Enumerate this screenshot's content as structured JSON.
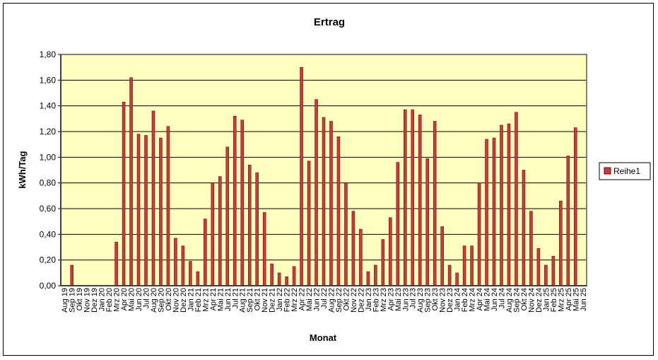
{
  "chart_data": {
    "type": "bar",
    "title": "Ertrag",
    "xlabel": "Monat",
    "ylabel": "kWh/Tag",
    "ylim": [
      0,
      1.8
    ],
    "ytick_step": 0.2,
    "ytick_labels": [
      "0,00",
      "0,20",
      "0,40",
      "0,60",
      "0,80",
      "1,00",
      "1,20",
      "1,40",
      "1,60",
      "1,80"
    ],
    "grid": true,
    "legend_position": "right",
    "colors": {
      "plot_background": "#ffffc0",
      "bar_fill": "#c04040",
      "bar_dark": "#800000",
      "grid": "#000000",
      "plot_border": "#808080"
    },
    "categories": [
      "Aug 19",
      "Sep 19",
      "Okt 19",
      "Nov 19",
      "Dez 19",
      "Jan 20",
      "Feb 20",
      "Mrz 20",
      "Apr 20",
      "Mai 20",
      "Jun 20",
      "Jul 20",
      "Aug 20",
      "Sep 20",
      "Okt 20",
      "Nov 20",
      "Dez 20",
      "Jan 21",
      "Feb 21",
      "Mrz 21",
      "Apr 21",
      "Mai 21",
      "Jun 21",
      "Jul 21",
      "Aug 21",
      "Sep 21",
      "Okt 21",
      "Nov 21",
      "Dez 21",
      "Jan 22",
      "Feb 22",
      "Mrz 22",
      "Apr 22",
      "Mai 22",
      "Jun 22",
      "Jul 22",
      "Aug 22",
      "Sep 22",
      "Okt 22",
      "Nov 22",
      "Dez 22",
      "Jan 23",
      "Feb 23",
      "Mrz 23",
      "Apr 23",
      "Mai 23",
      "Jun 23",
      "Jul 23",
      "Aug 23",
      "Sep 23",
      "Okt 23",
      "Nov 23",
      "Dez 23",
      "Jan 24",
      "Feb 24",
      "Mrz 24",
      "Apr 24",
      "Mai 24",
      "Jun 24",
      "Jul 24",
      "Aug 24",
      "Sep 24",
      "Okt 24",
      "Nov 24",
      "Dez 24",
      "Jan 25",
      "Feb 25",
      "Mrz 25",
      "Apr 25",
      "Mai 25",
      "Jun 25"
    ],
    "series": [
      {
        "name": "Reihe1",
        "values": [
          0,
          0.16,
          0,
          0,
          0,
          0,
          0,
          0.34,
          1.43,
          1.62,
          1.18,
          1.17,
          1.36,
          1.15,
          1.24,
          0.37,
          0.31,
          0.19,
          0.11,
          0.52,
          0.8,
          0.85,
          1.08,
          1.32,
          1.29,
          0.94,
          0.88,
          0.57,
          0.17,
          0.1,
          0.07,
          0.15,
          1.7,
          0.97,
          1.45,
          1.31,
          1.28,
          1.16,
          0.8,
          0.58,
          0.44,
          0.11,
          0.16,
          0.36,
          0.53,
          0.96,
          1.37,
          1.37,
          1.33,
          0.99,
          1.28,
          0.46,
          0.16,
          0.1,
          0.31,
          0.31,
          0.8,
          1.14,
          1.15,
          1.25,
          1.26,
          1.35,
          0.9,
          0.58,
          0.29,
          0.16,
          0.23,
          0.66,
          1.01,
          1.23,
          0
        ]
      }
    ]
  }
}
